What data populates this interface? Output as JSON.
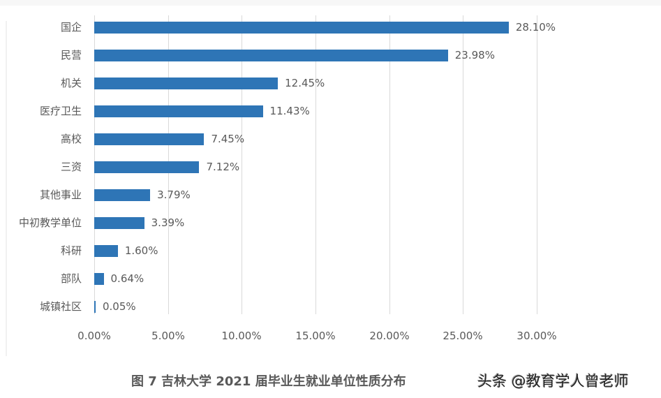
{
  "chart_data": {
    "type": "bar",
    "orientation": "horizontal",
    "title": "图 7 吉林大学 2021 届毕业生就业单位性质分布",
    "xlabel": "",
    "ylabel": "",
    "xlim": [
      0,
      30
    ],
    "x_ticks": [
      "0.00%",
      "5.00%",
      "10.00%",
      "15.00%",
      "20.00%",
      "25.00%",
      "30.00%"
    ],
    "grid": true,
    "legend": null,
    "color": "#2e75b6",
    "categories": [
      "国企",
      "民营",
      "机关",
      "医疗卫生",
      "高校",
      "三资",
      "其他事业",
      "中初教学单位",
      "科研",
      "部队",
      "城镇社区"
    ],
    "values": [
      28.1,
      23.98,
      12.45,
      11.43,
      7.45,
      7.12,
      3.79,
      3.39,
      1.6,
      0.64,
      0.05
    ],
    "value_labels": [
      "28.10%",
      "23.98%",
      "12.45%",
      "11.43%",
      "7.45%",
      "7.12%",
      "3.79%",
      "3.39%",
      "1.60%",
      "0.64%",
      "0.05%"
    ]
  },
  "caption": "图 7 吉林大学 2021 届毕业生就业单位性质分布",
  "watermark": "头条 @教育学人曾老师"
}
